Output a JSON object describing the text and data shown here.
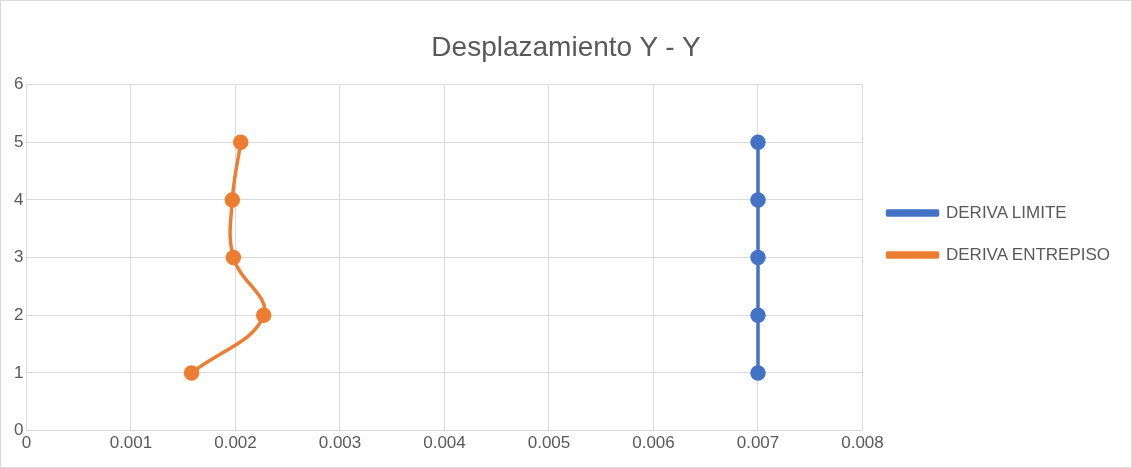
{
  "chart_data": {
    "type": "line",
    "title": "Desplazamiento Y - Y",
    "series": [
      {
        "name": "DERIVA LIMITE",
        "color": "#4472c4",
        "x": [
          0.007,
          0.007,
          0.007,
          0.007,
          0.007
        ],
        "values": [
          1,
          2,
          3,
          4,
          5
        ]
      },
      {
        "name": "DERIVA ENTREPISO",
        "color": "#ed7d31",
        "x": [
          0.00158,
          0.00227,
          0.00198,
          0.00197,
          0.00205
        ],
        "values": [
          1,
          2,
          3,
          4,
          5
        ]
      }
    ],
    "xlim": [
      0,
      0.008
    ],
    "xticks": [
      0,
      0.001,
      0.002,
      0.003,
      0.004,
      0.005,
      0.006,
      0.007,
      0.008
    ],
    "ylim": [
      0,
      6
    ],
    "yticks": [
      0,
      1,
      2,
      3,
      4,
      5,
      6
    ],
    "grid": true,
    "legend": "right",
    "marker": "circle",
    "line_style": "solid"
  }
}
